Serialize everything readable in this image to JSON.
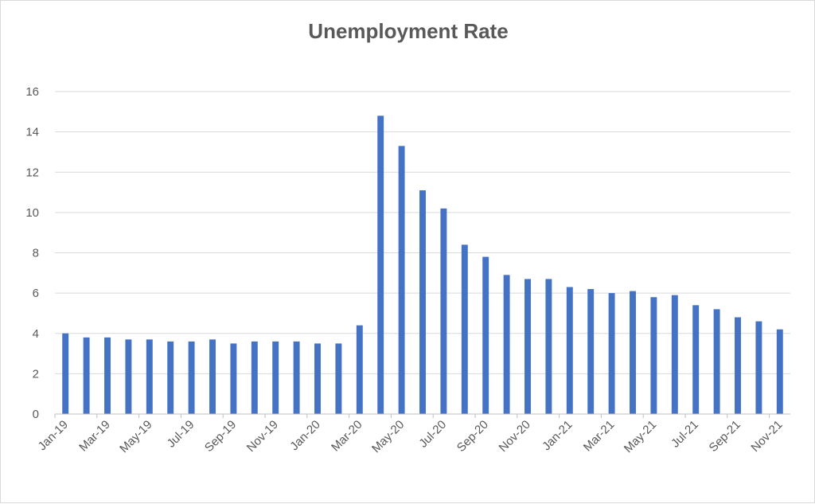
{
  "chart_data": {
    "type": "bar",
    "title": "Unemployment Rate",
    "xlabel": "",
    "ylabel": "",
    "ylim": [
      0,
      16
    ],
    "yticks": [
      0,
      2,
      4,
      6,
      8,
      10,
      12,
      14,
      16
    ],
    "grid": true,
    "legend": "none",
    "bar_color": "#4472c4",
    "categories": [
      "Jan-19",
      "Feb-19",
      "Mar-19",
      "Apr-19",
      "May-19",
      "Jun-19",
      "Jul-19",
      "Aug-19",
      "Sep-19",
      "Oct-19",
      "Nov-19",
      "Dec-19",
      "Jan-20",
      "Feb-20",
      "Mar-20",
      "Apr-20",
      "May-20",
      "Jun-20",
      "Jul-20",
      "Aug-20",
      "Sep-20",
      "Oct-20",
      "Nov-20",
      "Dec-20",
      "Jan-21",
      "Feb-21",
      "Mar-21",
      "Apr-21",
      "May-21",
      "Jun-21",
      "Jul-21",
      "Aug-21",
      "Sep-21",
      "Oct-21",
      "Nov-21"
    ],
    "tick_labels_shown": [
      "Jan-19",
      "Mar-19",
      "May-19",
      "Jul-19",
      "Sep-19",
      "Nov-19",
      "Jan-20",
      "Mar-20",
      "May-20",
      "Jul-20",
      "Sep-20",
      "Nov-20",
      "Jan-21",
      "Mar-21",
      "May-21",
      "Jul-21",
      "Sep-21",
      "Nov-21"
    ],
    "values": [
      4.0,
      3.8,
      3.8,
      3.7,
      3.7,
      3.6,
      3.6,
      3.7,
      3.5,
      3.6,
      3.6,
      3.6,
      3.5,
      3.5,
      4.4,
      14.8,
      13.3,
      11.1,
      10.2,
      8.4,
      7.8,
      6.9,
      6.7,
      6.7,
      6.3,
      6.2,
      6.0,
      6.1,
      5.8,
      5.9,
      5.4,
      5.2,
      4.8,
      4.6,
      4.2
    ]
  }
}
